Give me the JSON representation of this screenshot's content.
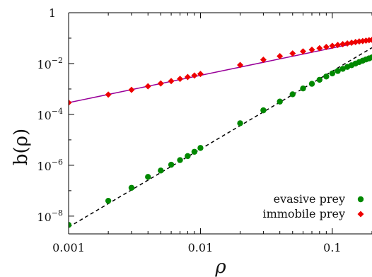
{
  "chart_data": {
    "type": "scatter",
    "title": "",
    "xlabel": "ρ",
    "ylabel": "b(ρ)",
    "xscale": "log",
    "yscale": "log",
    "xlim": [
      0.001,
      0.2
    ],
    "ylim": [
      2e-09,
      1
    ],
    "grid": false,
    "legend_position": "bottom-right",
    "xticks": [
      {
        "value": 0.001,
        "label": "0.001"
      },
      {
        "value": 0.01,
        "label": "0.01"
      },
      {
        "value": 0.1,
        "label": "0.1"
      }
    ],
    "yticks": [
      {
        "value": 1,
        "base": "1",
        "exp": ""
      },
      {
        "value": 0.01,
        "base": "10",
        "exp": "−2"
      },
      {
        "value": 0.0001,
        "base": "10",
        "exp": "−4"
      },
      {
        "value": 1e-06,
        "base": "10",
        "exp": "−6"
      },
      {
        "value": 1e-08,
        "base": "10",
        "exp": "−8"
      }
    ],
    "series": [
      {
        "name": "evasive prey",
        "color": "#008800",
        "marker": "circle",
        "points": [
          [
            0.001,
            4.5e-09
          ],
          [
            0.002,
            4e-08
          ],
          [
            0.003,
            1.3e-07
          ],
          [
            0.004,
            3.5e-07
          ],
          [
            0.005,
            6.2e-07
          ],
          [
            0.006,
            1.05e-06
          ],
          [
            0.007,
            1.6e-06
          ],
          [
            0.008,
            2.3e-06
          ],
          [
            0.009,
            3.4e-06
          ],
          [
            0.01,
            4.8e-06
          ],
          [
            0.02,
            4.5e-05
          ],
          [
            0.03,
            0.000145
          ],
          [
            0.04,
            0.00032
          ],
          [
            0.05,
            0.00062
          ],
          [
            0.06,
            0.00105
          ],
          [
            0.07,
            0.0016
          ],
          [
            0.08,
            0.0023
          ],
          [
            0.09,
            0.0031
          ],
          [
            0.1,
            0.0041
          ],
          [
            0.11,
            0.0051
          ],
          [
            0.12,
            0.0062
          ],
          [
            0.13,
            0.0074
          ],
          [
            0.14,
            0.0086
          ],
          [
            0.15,
            0.01
          ],
          [
            0.16,
            0.0115
          ],
          [
            0.17,
            0.013
          ],
          [
            0.18,
            0.0145
          ],
          [
            0.19,
            0.016
          ],
          [
            0.2,
            0.0175
          ]
        ]
      },
      {
        "name": "immobile prey",
        "color": "#ee0000",
        "marker": "diamond",
        "points": [
          [
            0.001,
            0.00029
          ],
          [
            0.002,
            0.0006
          ],
          [
            0.003,
            0.00093
          ],
          [
            0.004,
            0.00128
          ],
          [
            0.005,
            0.00165
          ],
          [
            0.006,
            0.00205
          ],
          [
            0.007,
            0.0025
          ],
          [
            0.008,
            0.00295
          ],
          [
            0.009,
            0.0034
          ],
          [
            0.01,
            0.0039
          ],
          [
            0.02,
            0.0088
          ],
          [
            0.03,
            0.0142
          ],
          [
            0.04,
            0.0195
          ],
          [
            0.05,
            0.025
          ],
          [
            0.06,
            0.03
          ],
          [
            0.07,
            0.035
          ],
          [
            0.08,
            0.04
          ],
          [
            0.09,
            0.045
          ],
          [
            0.1,
            0.05
          ],
          [
            0.11,
            0.054
          ],
          [
            0.12,
            0.058
          ],
          [
            0.13,
            0.062
          ],
          [
            0.14,
            0.066
          ],
          [
            0.15,
            0.07
          ],
          [
            0.16,
            0.074
          ],
          [
            0.17,
            0.077
          ],
          [
            0.18,
            0.08
          ],
          [
            0.19,
            0.083
          ],
          [
            0.2,
            0.086
          ]
        ]
      }
    ],
    "fit_lines": [
      {
        "color": "#990099",
        "style": "solid",
        "from": [
          0.001,
          0.00029
        ],
        "to": [
          0.2,
          0.086
        ]
      },
      {
        "color": "#000000",
        "style": "dashed",
        "from": [
          0.001,
          3.7e-09
        ],
        "to": [
          0.2,
          0.042
        ]
      }
    ]
  }
}
